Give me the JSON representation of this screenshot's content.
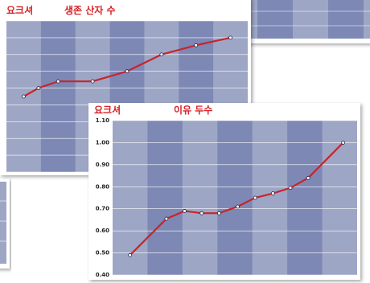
{
  "chart_data": [
    {
      "type": "line",
      "title": "요크셔",
      "subtitle": "생존 산자 수",
      "color": "#c8242a",
      "x": [
        0.5,
        0.93,
        1.5,
        2.5,
        3.5,
        4.5,
        5.5,
        6.5
      ],
      "values": [
        4.5,
        5.0,
        5.4,
        5.4,
        6.0,
        7.0,
        7.55,
        8.0
      ],
      "xlim": [
        0,
        7
      ],
      "ylim": [
        0,
        9
      ],
      "yticks": [
        0,
        1,
        2,
        3,
        4,
        5,
        6,
        7,
        8,
        9
      ],
      "grid": true
    },
    {
      "type": "line",
      "title": "요크셔",
      "subtitle": "이유 두수",
      "color": "#c8242a",
      "x": [
        0.5,
        1.54,
        2.06,
        2.55,
        3.05,
        3.58,
        4.08,
        4.59,
        5.09,
        5.6,
        6.6
      ],
      "values": [
        0.49,
        0.655,
        0.69,
        0.68,
        0.68,
        0.71,
        0.75,
        0.77,
        0.795,
        0.84,
        1.0
      ],
      "xlim": [
        0,
        7
      ],
      "ylim": [
        0.4,
        1.1
      ],
      "yticks": [
        {
          "value": 0.4,
          "label": "0.40"
        },
        {
          "value": 0.5,
          "label": "0.50"
        },
        {
          "value": 0.6,
          "label": "0.60"
        },
        {
          "value": 0.7,
          "label": "0.70"
        },
        {
          "value": 0.8,
          "label": "0.80"
        },
        {
          "value": 0.9,
          "label": "0.90"
        },
        {
          "value": 1.0,
          "label": "1.00"
        },
        {
          "value": 1.1,
          "label": "1.10"
        }
      ],
      "grid": true
    }
  ]
}
